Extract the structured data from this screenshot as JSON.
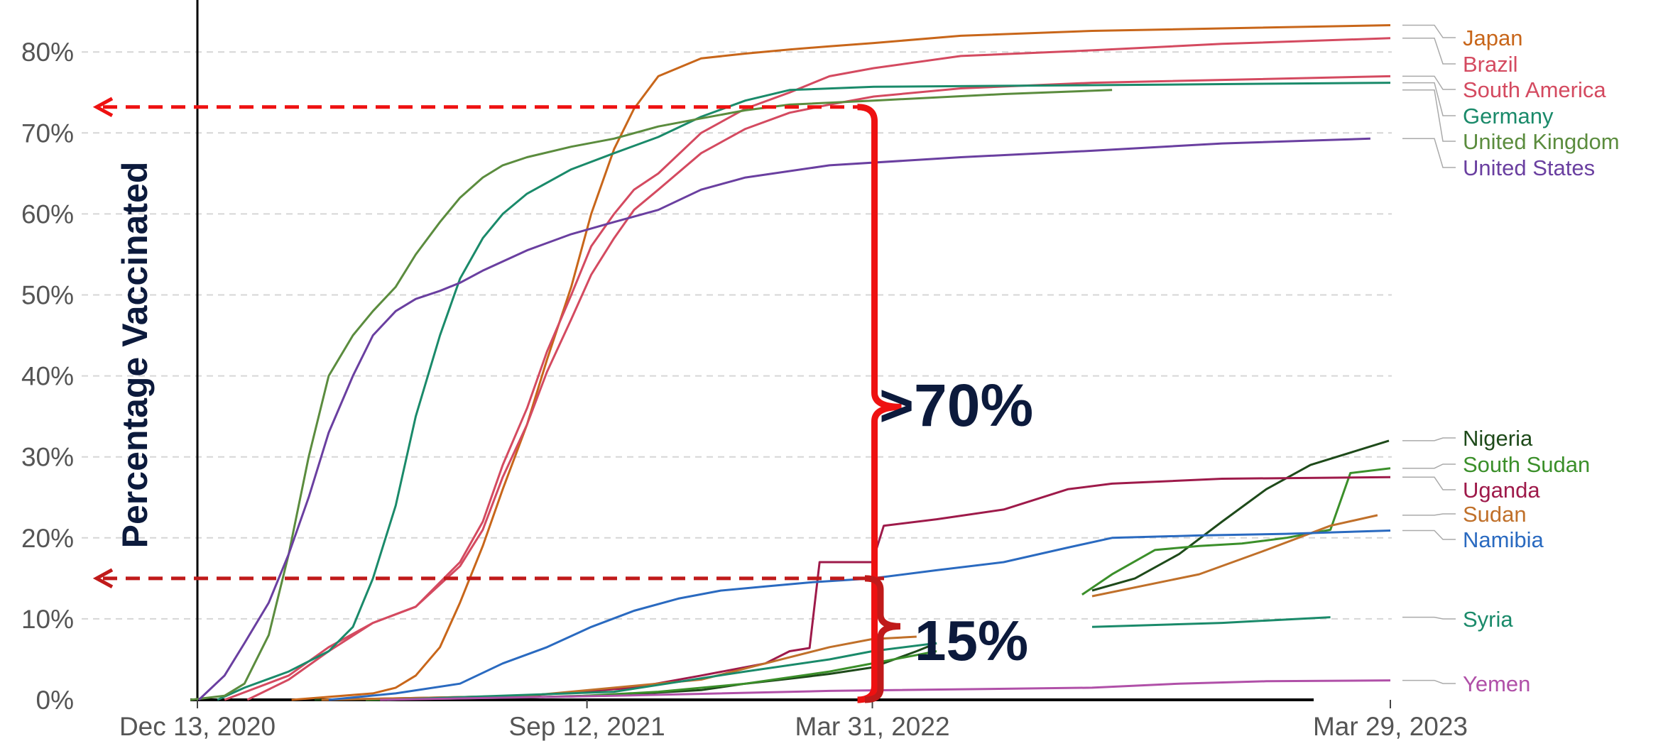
{
  "chart_data": {
    "type": "line",
    "title": "",
    "xlabel": "",
    "ylabel": "Percentage Vaccinated",
    "ylim": [
      0,
      85
    ],
    "yticks": [
      0,
      10,
      20,
      30,
      40,
      50,
      60,
      70,
      80
    ],
    "ytick_labels": [
      "0%",
      "10%",
      "20%",
      "30%",
      "40%",
      "50%",
      "60%",
      "70%",
      "80%"
    ],
    "x_range": [
      "2020-12-01",
      "2023-03-29"
    ],
    "xticks": [
      "2020-12-13",
      "2021-09-12",
      "2022-03-31",
      "2023-03-29"
    ],
    "xtick_labels": [
      "Dec 13, 2020",
      "Sep 12, 2021",
      "Mar 31, 2022",
      "Mar 29, 2023"
    ],
    "grid": "horizontal dashed",
    "legend": "labels at right end of lines",
    "series": [
      {
        "name": "Japan",
        "color": "#c8661a",
        "x": [
          "2021-02-17",
          "2021-04-15",
          "2021-05-01",
          "2021-05-15",
          "2021-06-01",
          "2021-06-15",
          "2021-07-01",
          "2021-07-15",
          "2021-08-01",
          "2021-08-15",
          "2021-09-01",
          "2021-09-15",
          "2021-10-01",
          "2021-10-15",
          "2021-11-01",
          "2021-12-01",
          "2022-01-01",
          "2022-02-01",
          "2022-03-01",
          "2022-04-01",
          "2022-06-01",
          "2022-09-01",
          "2023-03-29"
        ],
        "y": [
          0,
          0.8,
          1.5,
          3,
          6.5,
          12,
          19,
          26,
          34,
          42,
          51,
          60,
          68,
          73,
          77,
          79.2,
          79.8,
          80.3,
          80.7,
          81.1,
          82,
          82.6,
          83.3
        ]
      },
      {
        "name": "Brazil",
        "color": "#d44a60",
        "x": [
          "2021-01-17",
          "2021-02-15",
          "2021-03-15",
          "2021-04-15",
          "2021-05-15",
          "2021-06-15",
          "2021-07-01",
          "2021-07-15",
          "2021-08-01",
          "2021-08-15",
          "2021-09-01",
          "2021-09-15",
          "2021-10-01",
          "2021-10-15",
          "2021-11-01",
          "2021-12-01",
          "2022-01-01",
          "2022-02-01",
          "2022-03-01",
          "2022-04-01",
          "2022-06-01",
          "2022-09-01",
          "2022-12-01",
          "2023-03-29"
        ],
        "y": [
          0,
          2.5,
          6,
          9.5,
          11.5,
          17,
          22,
          29,
          36,
          43,
          50,
          56,
          60,
          63,
          65,
          70,
          73,
          75,
          77,
          78,
          79.5,
          80.2,
          81,
          81.7
        ]
      },
      {
        "name": "South America",
        "color": "#d44a60",
        "x": [
          "2021-01-01",
          "2021-02-15",
          "2021-03-15",
          "2021-04-15",
          "2021-05-15",
          "2021-06-15",
          "2021-07-01",
          "2021-07-15",
          "2021-08-01",
          "2021-08-15",
          "2021-09-01",
          "2021-09-15",
          "2021-10-01",
          "2021-10-15",
          "2021-11-01",
          "2021-12-01",
          "2022-01-01",
          "2022-02-01",
          "2022-03-01",
          "2022-04-01",
          "2022-06-01",
          "2022-09-01",
          "2023-03-29"
        ],
        "y": [
          0,
          3,
          6.5,
          9.5,
          11.5,
          16.5,
          21,
          27.5,
          34,
          40.5,
          47,
          52.5,
          57,
          60.5,
          63,
          67.5,
          70.5,
          72.5,
          73.5,
          74.5,
          75.5,
          76.2,
          77
        ]
      },
      {
        "name": "Germany",
        "color": "#1a8a6a",
        "x": [
          "2020-12-27",
          "2021-01-15",
          "2021-02-15",
          "2021-03-15",
          "2021-04-01",
          "2021-04-15",
          "2021-05-01",
          "2021-05-15",
          "2021-06-01",
          "2021-06-15",
          "2021-07-01",
          "2021-07-15",
          "2021-08-01",
          "2021-09-01",
          "2021-10-01",
          "2021-11-01",
          "2021-12-01",
          "2022-01-01",
          "2022-02-01",
          "2022-04-01",
          "2022-09-01",
          "2023-03-29"
        ],
        "y": [
          0,
          1.5,
          3.5,
          6,
          9,
          15,
          24,
          35,
          45,
          52,
          57,
          60,
          62.5,
          65.5,
          67.5,
          69.5,
          72,
          74,
          75.3,
          75.7,
          75.9,
          76.2
        ]
      },
      {
        "name": "United Kingdom",
        "color": "#5b8c3e",
        "x": [
          "2020-12-08",
          "2021-01-01",
          "2021-01-15",
          "2021-02-01",
          "2021-02-15",
          "2021-03-01",
          "2021-03-15",
          "2021-04-01",
          "2021-04-15",
          "2021-05-01",
          "2021-05-15",
          "2021-06-01",
          "2021-06-15",
          "2021-07-01",
          "2021-07-15",
          "2021-08-01",
          "2021-09-01",
          "2021-10-01",
          "2021-11-01",
          "2021-12-01",
          "2022-01-01",
          "2022-02-01",
          "2022-04-01",
          "2022-07-01",
          "2022-09-15"
        ],
        "y": [
          0,
          0.5,
          2,
          8,
          18,
          30,
          40,
          45,
          48,
          51,
          55,
          59,
          62,
          64.5,
          66,
          67,
          68.3,
          69.3,
          70.8,
          71.8,
          72.8,
          73.5,
          74,
          74.8,
          75.3
        ]
      },
      {
        "name": "United States",
        "color": "#6a3fa0",
        "x": [
          "2020-12-14",
          "2021-01-01",
          "2021-01-15",
          "2021-02-01",
          "2021-02-15",
          "2021-03-01",
          "2021-03-15",
          "2021-04-01",
          "2021-04-15",
          "2021-05-01",
          "2021-05-15",
          "2021-06-01",
          "2021-06-15",
          "2021-07-01",
          "2021-08-01",
          "2021-09-01",
          "2021-10-01",
          "2021-11-01",
          "2021-12-01",
          "2022-01-01",
          "2022-03-01",
          "2022-06-01",
          "2022-09-01",
          "2022-12-01",
          "2023-03-15"
        ],
        "y": [
          0,
          3,
          7,
          12,
          18,
          25,
          33,
          40,
          45,
          48,
          49.5,
          50.5,
          51.5,
          53,
          55.5,
          57.5,
          59,
          60.5,
          63,
          64.5,
          66,
          67,
          67.8,
          68.7,
          69.3
        ]
      },
      {
        "name": "Nigeria",
        "color": "#1e4a1a",
        "x": [
          "2021-03-05",
          "2021-08-01",
          "2021-10-01",
          "2021-12-01",
          "2022-01-01",
          "2022-02-01",
          "2022-03-01",
          "2022-03-31",
          "2022-05-01",
          "2022-05-15"
        ],
        "y": [
          0,
          0.3,
          0.6,
          1.2,
          2,
          2.6,
          3.2,
          4,
          6,
          7
        ]
      },
      {
        "name": "Nigeria",
        "color": "#1e4a1a",
        "x": [
          "2022-09-01",
          "2022-10-01",
          "2022-11-01",
          "2022-12-01",
          "2023-01-01",
          "2023-02-01",
          "2023-03-28"
        ],
        "y": [
          13.5,
          15,
          18,
          22,
          26,
          29,
          32
        ]
      },
      {
        "name": "South Sudan",
        "color": "#3b8f2a",
        "x": [
          "2021-04-10",
          "2021-09-01",
          "2021-11-01",
          "2022-01-01",
          "2022-03-01",
          "2022-04-15",
          "2022-05-15"
        ],
        "y": [
          0,
          0.4,
          1,
          2,
          3.5,
          5,
          6
        ]
      },
      {
        "name": "South Sudan",
        "color": "#3b8f2a",
        "x": [
          "2022-08-25",
          "2022-09-15",
          "2022-10-15",
          "2022-11-15",
          "2022-12-15",
          "2023-01-15",
          "2023-02-15",
          "2023-03-01",
          "2023-03-29"
        ],
        "y": [
          13,
          15.5,
          18.5,
          19,
          19.3,
          20,
          21,
          28,
          28.6
        ]
      },
      {
        "name": "Uganda",
        "color": "#9e1a4a",
        "x": [
          "2021-03-10",
          "2021-08-01",
          "2021-10-15",
          "2021-12-01",
          "2022-01-15",
          "2022-02-01",
          "2022-02-15",
          "2022-02-22",
          "2022-03-31",
          "2022-04-08",
          "2022-05-15",
          "2022-07-01",
          "2022-08-15",
          "2022-09-15",
          "2022-12-01",
          "2023-03-29"
        ],
        "y": [
          0,
          0.5,
          1.5,
          3,
          4.5,
          6,
          6.4,
          17,
          17,
          21.5,
          22.3,
          23.5,
          26,
          26.7,
          27.3,
          27.5
        ]
      },
      {
        "name": "Sudan",
        "color": "#c0702a",
        "x": [
          "2021-03-10",
          "2021-08-01",
          "2021-10-01",
          "2021-12-01",
          "2022-01-15",
          "2022-03-01",
          "2022-03-31",
          "2022-05-01"
        ],
        "y": [
          0,
          0.5,
          1.5,
          2.5,
          4.5,
          6.5,
          7.5,
          7.8
        ]
      },
      {
        "name": "Sudan",
        "color": "#c0702a",
        "x": [
          "2022-09-01",
          "2022-11-15",
          "2023-01-01",
          "2023-02-15",
          "2023-03-20"
        ],
        "y": [
          12.8,
          15.5,
          18.5,
          21.5,
          22.8
        ]
      },
      {
        "name": "Namibia",
        "color": "#2a6ac0",
        "x": [
          "2021-03-15",
          "2021-05-01",
          "2021-06-15",
          "2021-07-15",
          "2021-08-15",
          "2021-09-15",
          "2021-10-15",
          "2021-11-15",
          "2021-12-15",
          "2022-01-15",
          "2022-02-15",
          "2022-03-31",
          "2022-05-15",
          "2022-07-01",
          "2022-08-15",
          "2022-09-15",
          "2022-11-15",
          "2023-01-15",
          "2023-03-29"
        ],
        "y": [
          0,
          0.8,
          2,
          4.5,
          6.5,
          9,
          11,
          12.5,
          13.5,
          14,
          14.5,
          15,
          16,
          17,
          18.8,
          20,
          20.3,
          20.5,
          20.9
        ]
      },
      {
        "name": "Syria",
        "color": "#1a8a6a",
        "x": [
          "2021-04-25",
          "2021-10-01",
          "2022-01-01",
          "2022-03-01",
          "2022-03-31",
          "2022-05-15"
        ],
        "y": [
          0,
          1,
          3.5,
          5,
          6,
          7
        ]
      },
      {
        "name": "Syria",
        "color": "#1a8a6a",
        "x": [
          "2022-09-01",
          "2022-12-01",
          "2023-02-15"
        ],
        "y": [
          9,
          9.5,
          10.2
        ]
      },
      {
        "name": "Yemen",
        "color": "#b050a8",
        "x": [
          "2021-04-20",
          "2021-10-01",
          "2022-03-01",
          "2022-09-01",
          "2022-11-01",
          "2023-01-01",
          "2023-03-29"
        ],
        "y": [
          0,
          0.5,
          1.1,
          1.5,
          2,
          2.3,
          2.4
        ]
      }
    ],
    "labels": [
      {
        "text": "Japan",
        "color": "#c8661a"
      },
      {
        "text": "Brazil",
        "color": "#d44a60"
      },
      {
        "text": "South America",
        "color": "#d44a60"
      },
      {
        "text": "Germany",
        "color": "#1a8a6a"
      },
      {
        "text": "United Kingdom",
        "color": "#5b8c3e"
      },
      {
        "text": "United States",
        "color": "#6a3fa0"
      },
      {
        "text": "Nigeria",
        "color": "#1e4a1a"
      },
      {
        "text": "South Sudan",
        "color": "#3b8f2a"
      },
      {
        "text": "Uganda",
        "color": "#9e1a4a"
      },
      {
        "text": "Sudan",
        "color": "#c0702a"
      },
      {
        "text": "Namibia",
        "color": "#2a6ac0"
      },
      {
        "text": "Syria",
        "color": "#1a8a6a"
      },
      {
        "text": "Yemen",
        "color": "#b050a8"
      }
    ],
    "annotations": {
      "high_text": ">70%",
      "low_text": "15%",
      "high_level": 73.2,
      "low_level": 15,
      "date": "2022-03-31",
      "high_color": "#ee1111",
      "low_color": "#c01a1a"
    }
  }
}
